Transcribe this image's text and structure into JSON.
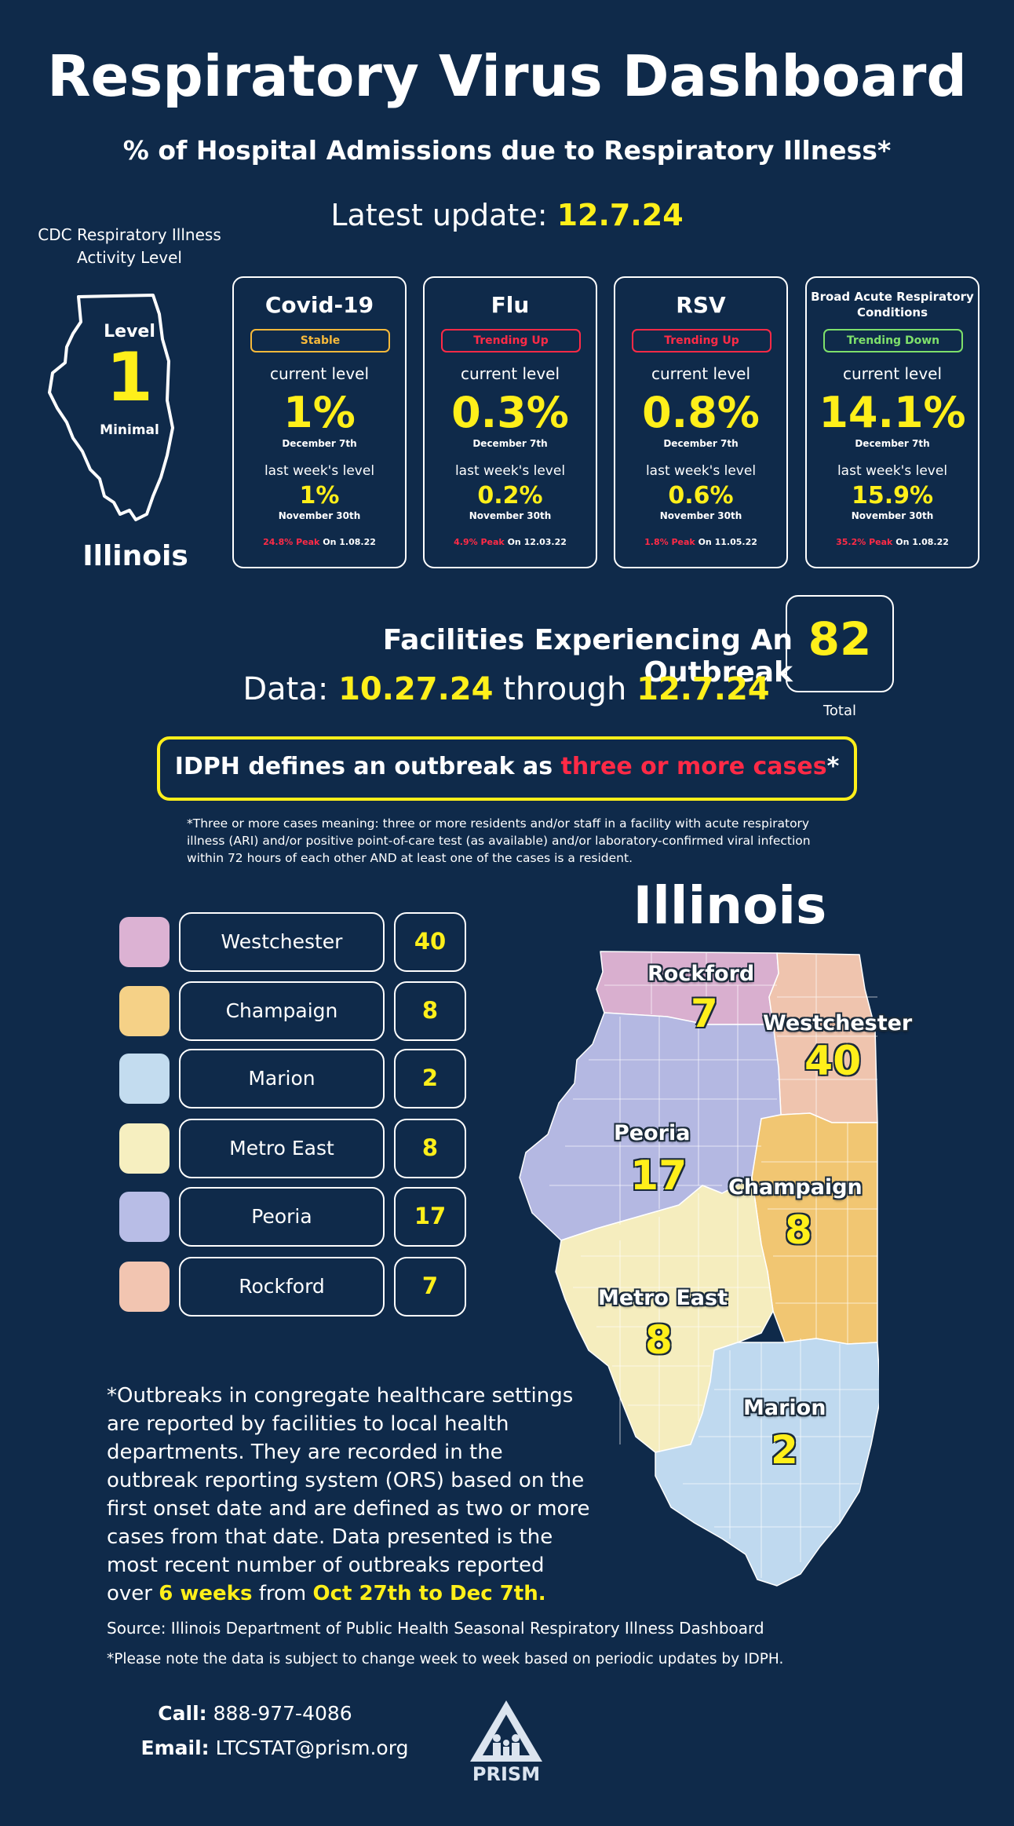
{
  "title": "Respiratory Virus Dashboard",
  "subtitle": "% of Hospital Admissions due to Respiratory Illness*",
  "latest_update": {
    "label": "Latest update: ",
    "value": "12.7.24"
  },
  "activity": {
    "label": "CDC Respiratory Illness Activity Level",
    "level_word": "Level",
    "level_num": "1",
    "level_desc": "Minimal",
    "state": "Illinois"
  },
  "cards": [
    {
      "name": "Covid-19",
      "trend": "Stable",
      "trend_color": "#f6b93b",
      "current_label": "current level",
      "current_value": "1%",
      "current_date": "December 7th",
      "last_label": "last week's level",
      "last_value": "1%",
      "last_date": "November 30th",
      "peak": "24.8% Peak",
      "peak_on": "On 1.08.22"
    },
    {
      "name": "Flu",
      "trend": "Trending Up",
      "trend_color": "#ff2a46",
      "current_label": "current level",
      "current_value": "0.3%",
      "current_date": "December 7th",
      "last_label": "last week's level",
      "last_value": "0.2%",
      "last_date": "November 30th",
      "peak": "4.9% Peak",
      "peak_on": "On 12.03.22"
    },
    {
      "name": "RSV",
      "trend": "Trending Up",
      "trend_color": "#ff2a46",
      "current_label": "current level",
      "current_value": "0.8%",
      "current_date": "December 7th",
      "last_label": "last week's level",
      "last_value": "0.6%",
      "last_date": "November 30th",
      "peak": "1.8% Peak",
      "peak_on": "On 11.05.22"
    },
    {
      "name": "Broad Acute Respiratory Conditions",
      "trend": "Trending Down",
      "trend_color": "#7ee06b",
      "current_label": "current level",
      "current_value": "14.1%",
      "current_date": "December 7th",
      "last_label": "last week's level",
      "last_value": "15.9%",
      "last_date": "November 30th",
      "peak": "35.2% Peak",
      "peak_on": "On 1.08.22"
    }
  ],
  "facilities": {
    "title": "Facilities Experiencing An Outbreak",
    "data_label": "Data: ",
    "start": "10.27.24",
    "through": " through ",
    "end": "12.7.24",
    "total": "82",
    "total_label": "Total"
  },
  "definition": {
    "prefix": "IDPH defines an outbreak as ",
    "highlight": "three or more cases",
    "suffix": "*",
    "note": "*Three or more cases meaning: three or more residents and/or staff in a facility with acute respiratory illness (ARI) and/or positive point-of-care test (as available) and/or laboratory-confirmed viral infection within 72 hours of each other AND at least one of the cases is a resident."
  },
  "regions": [
    {
      "name": "Westchester",
      "count": "40",
      "color": "#dcb2d3"
    },
    {
      "name": "Champaign",
      "count": "8",
      "color": "#f5d187"
    },
    {
      "name": "Marion",
      "count": "2",
      "color": "#c3dcef"
    },
    {
      "name": "Metro East",
      "count": "8",
      "color": "#f6efc0"
    },
    {
      "name": "Peoria",
      "count": "17",
      "color": "#b8bde6"
    },
    {
      "name": "Rockford",
      "count": "7",
      "color": "#f2c5b1"
    }
  ],
  "map": {
    "title": "Illinois",
    "labels": {
      "rockford": "Rockford",
      "rockford_n": "7",
      "westchester": "Westchester",
      "westchester_n": "40",
      "peoria": "Peoria",
      "peoria_n": "17",
      "champaign": "Champaign",
      "champaign_n": "8",
      "metro_east": "Metro East",
      "metro_east_n": "8",
      "marion": "Marion",
      "marion_n": "2"
    },
    "colors": {
      "rockford": "#d9afcf",
      "westchester": "#efc4ae",
      "peoria": "#b4b8e2",
      "champaign": "#f1c672",
      "metro_east": "#f5edbe",
      "marion": "#bfd9ef"
    }
  },
  "footnote": {
    "text": "*Outbreaks in congregate healthcare settings are reported by facilities to local health departments. They are recorded in the outbreak reporting system (ORS) based on the first onset date and are defined as two or more cases from that date. Data presented is the most recent number of outbreaks reported over ",
    "weeks": "6 weeks",
    "from": " from ",
    "range": "Oct 27th to Dec 7th."
  },
  "source": "Source: Illinois Department of Public Health Seasonal Respiratory Illness Dashboard",
  "note2": "*Please note the data is subject to change week to week based on periodic updates by IDPH.",
  "contact": {
    "call_label": "Call:",
    "phone": " 888-977-4086",
    "email_label": "Email:",
    "email": " LTCSTAT@prism.org"
  },
  "logo_text": "PRISM"
}
